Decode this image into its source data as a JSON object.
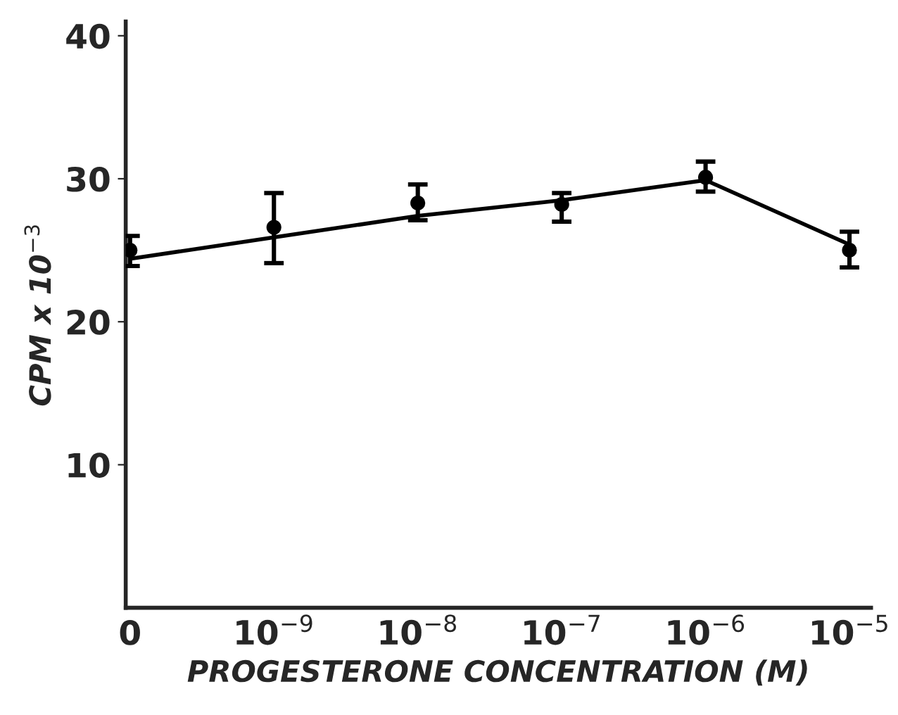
{
  "chart_data": {
    "type": "scatter",
    "xlabel": "PROGESTERONE CONCENTRATION (M)",
    "ylabel": "CPM x 10$^{−3}$",
    "categories": [
      "0",
      "10$^{−9}$",
      "10$^{−8}$",
      "10$^{−7}$",
      "10$^{−6}$",
      "10$^{−5}$"
    ],
    "series": [
      {
        "color": "#000000",
        "marker": "circle",
        "values": [
          25.0,
          26.6,
          28.3,
          28.2,
          30.1,
          25.0
        ],
        "errors": [
          [
            23.9,
            26.0
          ],
          [
            24.1,
            29.0
          ],
          [
            27.1,
            29.6
          ],
          [
            27.0,
            29.0
          ],
          [
            29.1,
            31.2
          ],
          [
            23.8,
            26.3
          ]
        ]
      },
      {
        "type": "line",
        "color": "#000000",
        "marker": "none",
        "line_style": "solid",
        "values": [
          24.4,
          25.9,
          27.4,
          28.5,
          29.9,
          25.4
        ]
      }
    ],
    "ylim": [
      0,
      41
    ],
    "yticks": [
      10,
      20,
      30,
      40
    ],
    "grid": false,
    "legend": false
  }
}
